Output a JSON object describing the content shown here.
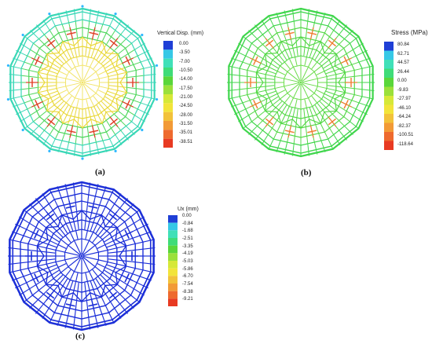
{
  "panels": [
    {
      "id": "a",
      "caption": "(a)",
      "legend_title": "Vertical Disp. (mm)",
      "legend_values": [
        "0.00",
        "-3.50",
        "-7.00",
        "-10.50",
        "-14.00",
        "-17.50",
        "-21.00",
        "-24.50",
        "-28.00",
        "-31.50",
        "-35.01",
        "-38.51"
      ],
      "legend_colors": [
        "#1f3fd6",
        "#36c8e6",
        "#40e0b8",
        "#3fdc78",
        "#5ad63a",
        "#9be03a",
        "#d6e838",
        "#f2e43a",
        "#f2c23a",
        "#f29a36",
        "#ee6a2e",
        "#e83a22"
      ],
      "structure_colors": {
        "outer": "#38d7b6",
        "mid": "#4cd65a",
        "inner": "#e9d83a",
        "core": "#f2e46a",
        "accent": "#e03a22"
      }
    },
    {
      "id": "b",
      "caption": "(b)",
      "legend_title": "Stress (MPa)",
      "legend_values": [
        "80.84",
        "62.71",
        "44.57",
        "26.44",
        "0.00",
        "-9.83",
        "-27.97",
        "-46.10",
        "-64.24",
        "-82.37",
        "-100.51",
        "-118.64"
      ],
      "legend_colors": [
        "#1f3fd6",
        "#36c8e6",
        "#40e0b8",
        "#3fdc78",
        "#5ad63a",
        "#9be03a",
        "#d6e838",
        "#f2e43a",
        "#f2c23a",
        "#f29a36",
        "#ee6a2e",
        "#e83a22"
      ],
      "structure_colors": {
        "outer": "#3fd64c",
        "mid": "#55d848",
        "inner": "#55d848",
        "core": "#6adc4a",
        "accent": "#f07a2e"
      }
    },
    {
      "id": "c",
      "caption": "(c)",
      "legend_title": "Ux (mm)",
      "legend_values": [
        "0.00",
        "-0.84",
        "-1.68",
        "-2.51",
        "-3.35",
        "-4.19",
        "-5.03",
        "-5.86",
        "-6.70",
        "-7.54",
        "-8.38",
        "-9.21"
      ],
      "legend_colors": [
        "#1f3fd6",
        "#36c8e6",
        "#40e0b8",
        "#3fdc78",
        "#5ad63a",
        "#9be03a",
        "#d6e838",
        "#f2e43a",
        "#f2c23a",
        "#f29a36",
        "#ee6a2e",
        "#e83a22"
      ],
      "structure_colors": {
        "outer": "#1c2fd8",
        "mid": "#1c2fd8",
        "inner": "#1c2fd8",
        "core": "#1c2fd8",
        "accent": "#1c2fd8"
      }
    }
  ]
}
